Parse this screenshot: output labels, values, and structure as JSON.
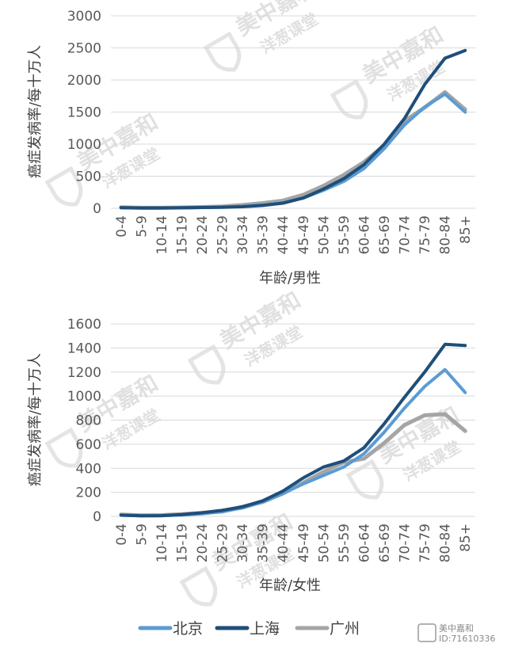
{
  "chart_data": [
    {
      "type": "line",
      "title": "",
      "xlabel": "年龄/男性",
      "ylabel": "癌症发病率/每十万人",
      "ylim": [
        0,
        3000
      ],
      "yticks": [
        0,
        500,
        1000,
        1500,
        2000,
        2500,
        3000
      ],
      "grid": true,
      "categories": [
        "0-4",
        "5-9",
        "10-14",
        "15-19",
        "20-24",
        "25-29",
        "30-34",
        "35-39",
        "40-44",
        "45-49",
        "50-54",
        "55-59",
        "60-64",
        "65-69",
        "70-74",
        "75-79",
        "80-84",
        "85+"
      ],
      "series": [
        {
          "name": "北京",
          "values": [
            10,
            5,
            6,
            8,
            12,
            18,
            30,
            50,
            85,
            160,
            280,
            420,
            620,
            930,
            1300,
            1580,
            1780,
            1500
          ]
        },
        {
          "name": "上海",
          "values": [
            10,
            5,
            5,
            8,
            12,
            16,
            25,
            45,
            80,
            160,
            300,
            460,
            680,
            1000,
            1400,
            1930,
            2340,
            2460
          ]
        },
        {
          "name": "广州",
          "values": [
            15,
            8,
            8,
            12,
            18,
            28,
            50,
            80,
            120,
            210,
            350,
            520,
            720,
            980,
            1360,
            1570,
            1810,
            1540
          ]
        }
      ]
    },
    {
      "type": "line",
      "title": "",
      "xlabel": "年龄/女性",
      "ylabel": "癌症发病率/每十万人",
      "ylim": [
        0,
        1600
      ],
      "yticks": [
        0,
        200,
        400,
        600,
        800,
        1000,
        1200,
        1400,
        1600
      ],
      "grid": true,
      "categories": [
        "0-4",
        "5-9",
        "10-14",
        "15-19",
        "20-24",
        "25-29",
        "30-34",
        "35-39",
        "40-44",
        "45-49",
        "50-54",
        "55-59",
        "60-64",
        "65-69",
        "70-74",
        "75-79",
        "80-84",
        "85+"
      ],
      "series": [
        {
          "name": "北京",
          "values": [
            10,
            5,
            6,
            12,
            22,
            40,
            70,
            120,
            190,
            270,
            340,
            410,
            520,
            700,
            900,
            1080,
            1220,
            1030
          ]
        },
        {
          "name": "上海",
          "values": [
            10,
            5,
            6,
            15,
            30,
            50,
            80,
            130,
            210,
            320,
            410,
            460,
            570,
            770,
            990,
            1200,
            1430,
            1420
          ]
        },
        {
          "name": "广州",
          "values": [
            15,
            8,
            10,
            18,
            28,
            40,
            80,
            120,
            190,
            280,
            370,
            450,
            480,
            610,
            760,
            840,
            850,
            710
          ]
        }
      ]
    }
  ],
  "legend": [
    {
      "name": "北京",
      "color": "#5b9bd5"
    },
    {
      "name": "上海",
      "color": "#1f4e79"
    },
    {
      "name": "广州",
      "color": "#a5a5a5"
    }
  ],
  "watermark": {
    "brand": "美中嘉和",
    "sub": "洋葱课堂"
  },
  "corner": {
    "brand": "美中嘉和",
    "id": "ID:71610336"
  }
}
